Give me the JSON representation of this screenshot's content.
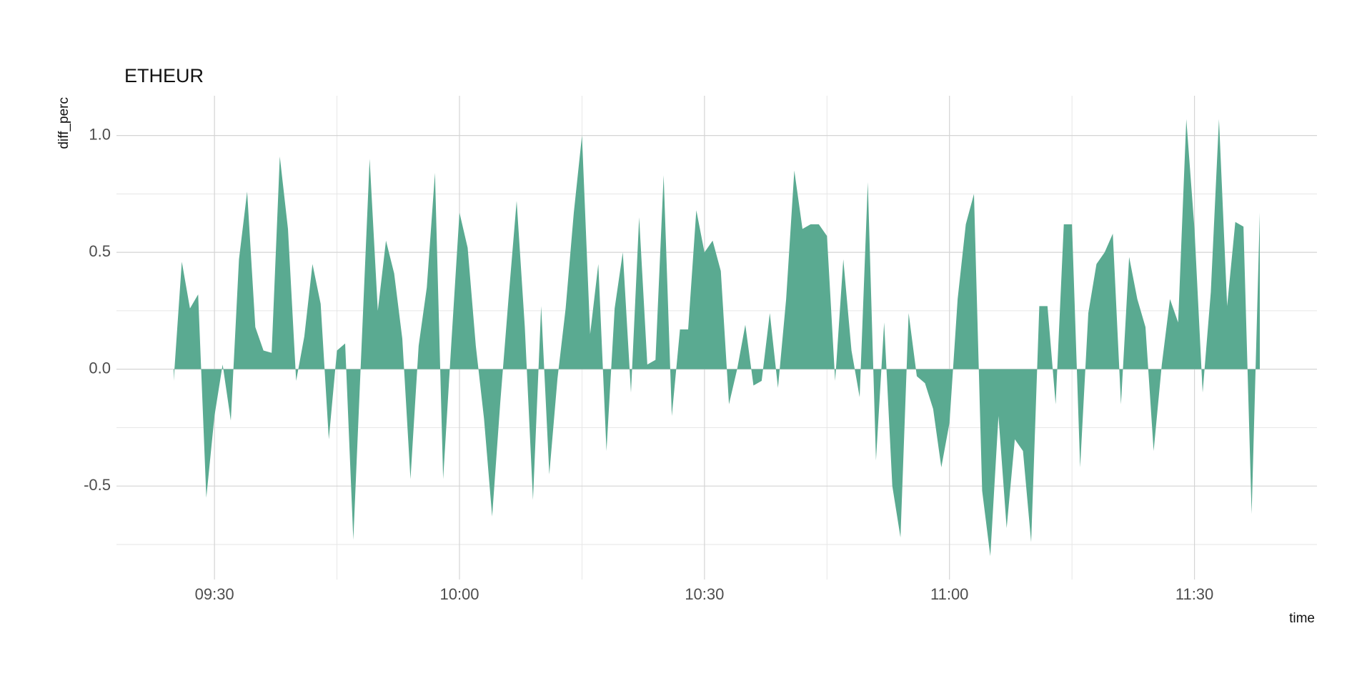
{
  "chart_data": {
    "type": "area",
    "title": "ETHEUR",
    "x_label": "time",
    "y_label": "diff_perc",
    "color": "#5aaa91",
    "grid": true,
    "xlim": [
      "09:18",
      "11:45"
    ],
    "xticks": [
      "09:30",
      "10:00",
      "10:30",
      "11:00",
      "11:30"
    ],
    "xminor": [
      "09:45",
      "10:15",
      "10:45",
      "11:15"
    ],
    "ylim": [
      -0.9,
      1.17
    ],
    "yticks": [
      -0.5,
      {
        "value": 0,
        "label": "0.0"
      },
      0.5,
      {
        "value": 1,
        "label": "1.0"
      }
    ],
    "yminor": [
      -0.75,
      -0.25,
      0.25,
      0.75
    ],
    "x": [
      "09:25",
      "09:26",
      "09:27",
      "09:28",
      "09:29",
      "09:30",
      "09:31",
      "09:32",
      "09:33",
      "09:34",
      "09:35",
      "09:36",
      "09:37",
      "09:38",
      "09:39",
      "09:40",
      "09:41",
      "09:42",
      "09:43",
      "09:44",
      "09:45",
      "09:46",
      "09:47",
      "09:48",
      "09:49",
      "09:50",
      "09:51",
      "09:52",
      "09:53",
      "09:54",
      "09:55",
      "09:56",
      "09:57",
      "09:58",
      "09:59",
      "10:00",
      "10:01",
      "10:02",
      "10:03",
      "10:04",
      "10:05",
      "10:06",
      "10:07",
      "10:08",
      "10:09",
      "10:10",
      "10:11",
      "10:12",
      "10:13",
      "10:14",
      "10:15",
      "10:16",
      "10:17",
      "10:18",
      "10:19",
      "10:20",
      "10:21",
      "10:22",
      "10:23",
      "10:24",
      "10:25",
      "10:26",
      "10:27",
      "10:28",
      "10:29",
      "10:30",
      "10:31",
      "10:32",
      "10:33",
      "10:34",
      "10:35",
      "10:36",
      "10:37",
      "10:38",
      "10:39",
      "10:40",
      "10:41",
      "10:42",
      "10:43",
      "10:44",
      "10:45",
      "10:46",
      "10:47",
      "10:48",
      "10:49",
      "10:50",
      "10:51",
      "10:52",
      "10:53",
      "10:54",
      "10:55",
      "10:56",
      "10:57",
      "10:58",
      "10:59",
      "11:00",
      "11:01",
      "11:02",
      "11:03",
      "11:04",
      "11:05",
      "11:06",
      "11:07",
      "11:08",
      "11:09",
      "11:10",
      "11:11",
      "11:12",
      "11:13",
      "11:14",
      "11:15",
      "11:16",
      "11:17",
      "11:18",
      "11:19",
      "11:20",
      "11:21",
      "11:22",
      "11:23",
      "11:24",
      "11:25",
      "11:26",
      "11:27",
      "11:28",
      "11:29",
      "11:30",
      "11:31",
      "11:32",
      "11:33",
      "11:34",
      "11:35",
      "11:36",
      "11:37",
      "11:38"
    ],
    "values": [
      -0.05,
      0.46,
      0.26,
      0.32,
      -0.55,
      -0.2,
      0.02,
      -0.22,
      0.47,
      0.76,
      0.18,
      0.08,
      0.07,
      0.91,
      0.6,
      -0.05,
      0.14,
      0.45,
      0.28,
      -0.3,
      0.08,
      0.11,
      -0.73,
      0.09,
      0.9,
      0.25,
      0.55,
      0.41,
      0.13,
      -0.47,
      0.1,
      0.35,
      0.84,
      -0.47,
      0.11,
      0.67,
      0.52,
      0.1,
      -0.21,
      -0.63,
      -0.14,
      0.3,
      0.72,
      0.18,
      -0.56,
      0.27,
      -0.45,
      -0.04,
      0.26,
      0.67,
      1.0,
      0.15,
      0.45,
      -0.35,
      0.26,
      0.5,
      -0.1,
      0.65,
      0.02,
      0.04,
      0.83,
      -0.2,
      0.17,
      0.17,
      0.68,
      0.5,
      0.55,
      0.42,
      -0.15,
      0.0,
      0.19,
      -0.07,
      -0.05,
      0.24,
      -0.08,
      0.3,
      0.85,
      0.6,
      0.62,
      0.62,
      0.57,
      -0.05,
      0.47,
      0.08,
      -0.12,
      0.8,
      -0.39,
      0.2,
      -0.5,
      -0.72,
      0.24,
      -0.03,
      -0.06,
      -0.17,
      -0.42,
      -0.23,
      0.3,
      0.62,
      0.75,
      -0.52,
      -0.8,
      -0.2,
      -0.68,
      -0.3,
      -0.35,
      -0.74,
      0.27,
      0.27,
      -0.15,
      0.62,
      0.62,
      -0.42,
      0.24,
      0.45,
      0.5,
      0.58,
      -0.15,
      0.48,
      0.3,
      0.18,
      -0.35,
      0.02,
      0.3,
      0.2,
      1.07,
      0.6,
      -0.1,
      0.33,
      1.07,
      0.27,
      0.63,
      0.61,
      -0.62,
      0.67
    ]
  }
}
